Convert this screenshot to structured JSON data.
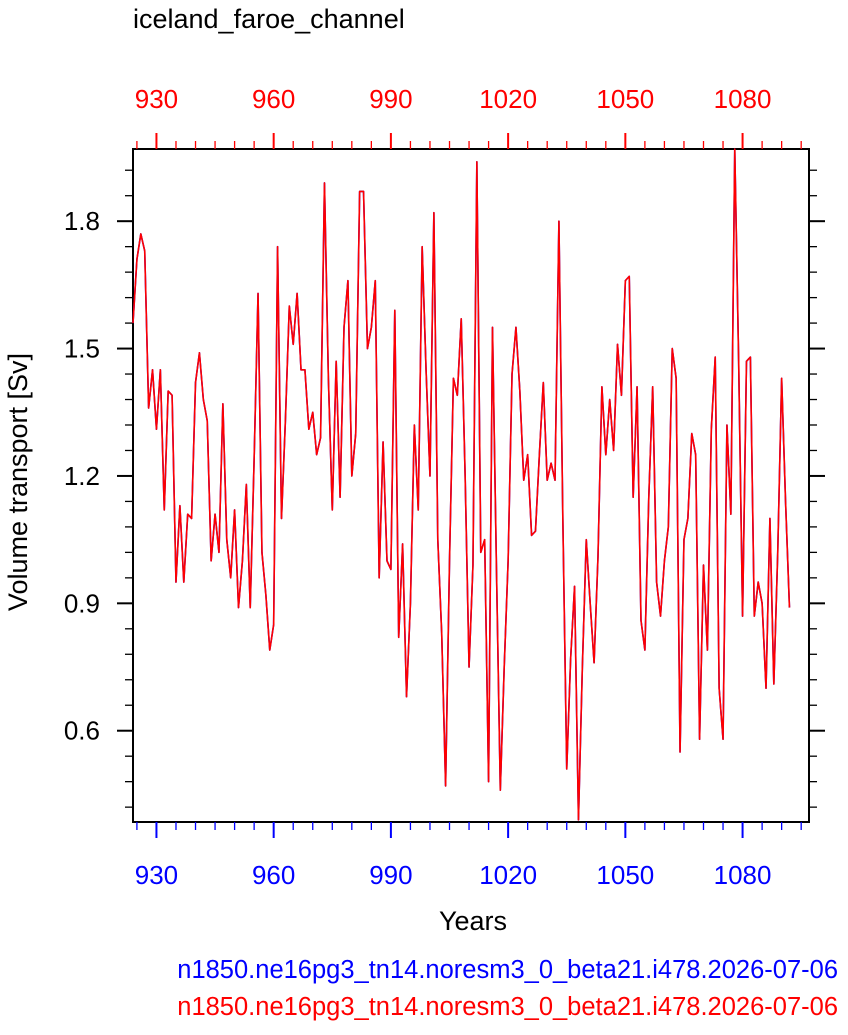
{
  "chart_data": {
    "type": "line",
    "title": "iceland_faroe_channel",
    "xlabel": "Years",
    "ylabel": "Volume transport [Sv]",
    "xlim": [
      924,
      1097
    ],
    "ylim": [
      0.385,
      1.97
    ],
    "x_ticks": [
      930,
      960,
      990,
      1020,
      1050,
      1080
    ],
    "x_tick_labels": [
      "930",
      "960",
      "990",
      "1020",
      "1050",
      "1080"
    ],
    "y_ticks": [
      0.6,
      0.9,
      1.2,
      1.5,
      1.8
    ],
    "y_tick_labels": [
      "0.6",
      "0.9",
      "1.2",
      "1.5",
      "1.8"
    ],
    "bottom_axis_color": "#0000ff",
    "top_axis_color": "#ff0000",
    "grid": false,
    "legend_position": "bottom",
    "series": [
      {
        "name": "n1850.ne16pg3_tn14.noresm3_0_beta21.i478.2026-07-06",
        "color": "#0000ff",
        "x_start": 924,
        "values": [
          1.56,
          1.71,
          1.77,
          1.73,
          1.36,
          1.45,
          1.31,
          1.45,
          1.12,
          1.4,
          1.39,
          0.95,
          1.13,
          0.95,
          1.11,
          1.1,
          1.42,
          1.49,
          1.38,
          1.33,
          1.0,
          1.11,
          1.02,
          1.37,
          1.05,
          0.96,
          1.12,
          0.89,
          1.0,
          1.18,
          0.89,
          1.24,
          1.63,
          1.02,
          0.92,
          0.79,
          0.85,
          1.74,
          1.1,
          1.33,
          1.6,
          1.51,
          1.63,
          1.45,
          1.45,
          1.31,
          1.35,
          1.25,
          1.29,
          1.89,
          1.43,
          1.12,
          1.47,
          1.15,
          1.55,
          1.66,
          1.2,
          1.3,
          1.87,
          1.87,
          1.5,
          1.55,
          1.66,
          0.96,
          1.28,
          1.0,
          0.98,
          1.59,
          0.82,
          1.04,
          0.68,
          0.9,
          1.32,
          1.12,
          1.74,
          1.45,
          1.2,
          1.82,
          1.05,
          0.83,
          0.47,
          1.0,
          1.43,
          1.39,
          1.57,
          1.2,
          0.75,
          0.99,
          1.94,
          1.02,
          1.05,
          0.48,
          1.55,
          0.99,
          0.46,
          0.75,
          1.0,
          1.44,
          1.55,
          1.4,
          1.19,
          1.25,
          1.06,
          1.07,
          1.25,
          1.42,
          1.19,
          1.23,
          1.19,
          1.8,
          1.1,
          0.51,
          0.77,
          0.94,
          0.39,
          0.75,
          1.05,
          0.9,
          0.76,
          1.01,
          1.41,
          1.25,
          1.38,
          1.26,
          1.51,
          1.39,
          1.66,
          1.67,
          1.15,
          1.41,
          0.86,
          0.79,
          1.15,
          1.41,
          0.95,
          0.87,
          1.0,
          1.08,
          1.5,
          1.43,
          0.55,
          1.05,
          1.1,
          1.3,
          1.25,
          0.58,
          0.99,
          0.79,
          1.31,
          1.48,
          0.7,
          0.58,
          1.32,
          1.11,
          1.97,
          1.47,
          0.87,
          1.47,
          1.48,
          0.87,
          0.95,
          0.9,
          0.7,
          1.1,
          0.71,
          1.02,
          1.43,
          1.14,
          0.89
        ]
      },
      {
        "name": "n1850.ne16pg3_tn14.noresm3_0_beta21.i478.2026-07-06",
        "color": "#ff0000",
        "x_start": 924,
        "values": [
          1.56,
          1.71,
          1.77,
          1.73,
          1.36,
          1.45,
          1.31,
          1.45,
          1.12,
          1.4,
          1.39,
          0.95,
          1.13,
          0.95,
          1.11,
          1.1,
          1.42,
          1.49,
          1.38,
          1.33,
          1.0,
          1.11,
          1.02,
          1.37,
          1.05,
          0.96,
          1.12,
          0.89,
          1.0,
          1.18,
          0.89,
          1.24,
          1.63,
          1.02,
          0.92,
          0.79,
          0.85,
          1.74,
          1.1,
          1.33,
          1.6,
          1.51,
          1.63,
          1.45,
          1.45,
          1.31,
          1.35,
          1.25,
          1.29,
          1.89,
          1.43,
          1.12,
          1.47,
          1.15,
          1.55,
          1.66,
          1.2,
          1.3,
          1.87,
          1.87,
          1.5,
          1.55,
          1.66,
          0.96,
          1.28,
          1.0,
          0.98,
          1.59,
          0.82,
          1.04,
          0.68,
          0.9,
          1.32,
          1.12,
          1.74,
          1.45,
          1.2,
          1.82,
          1.05,
          0.83,
          0.47,
          1.0,
          1.43,
          1.39,
          1.57,
          1.2,
          0.75,
          0.99,
          1.94,
          1.02,
          1.05,
          0.48,
          1.55,
          0.99,
          0.46,
          0.75,
          1.0,
          1.44,
          1.55,
          1.4,
          1.19,
          1.25,
          1.06,
          1.07,
          1.25,
          1.42,
          1.19,
          1.23,
          1.19,
          1.8,
          1.1,
          0.51,
          0.77,
          0.94,
          0.39,
          0.75,
          1.05,
          0.9,
          0.76,
          1.01,
          1.41,
          1.25,
          1.38,
          1.26,
          1.51,
          1.39,
          1.66,
          1.67,
          1.15,
          1.41,
          0.86,
          0.79,
          1.15,
          1.41,
          0.95,
          0.87,
          1.0,
          1.08,
          1.5,
          1.43,
          0.55,
          1.05,
          1.1,
          1.3,
          1.25,
          0.58,
          0.99,
          0.79,
          1.31,
          1.48,
          0.7,
          0.58,
          1.32,
          1.11,
          1.97,
          1.47,
          0.87,
          1.47,
          1.48,
          0.87,
          0.95,
          0.9,
          0.7,
          1.1,
          0.71,
          1.02,
          1.43,
          1.14,
          0.89
        ]
      }
    ]
  }
}
